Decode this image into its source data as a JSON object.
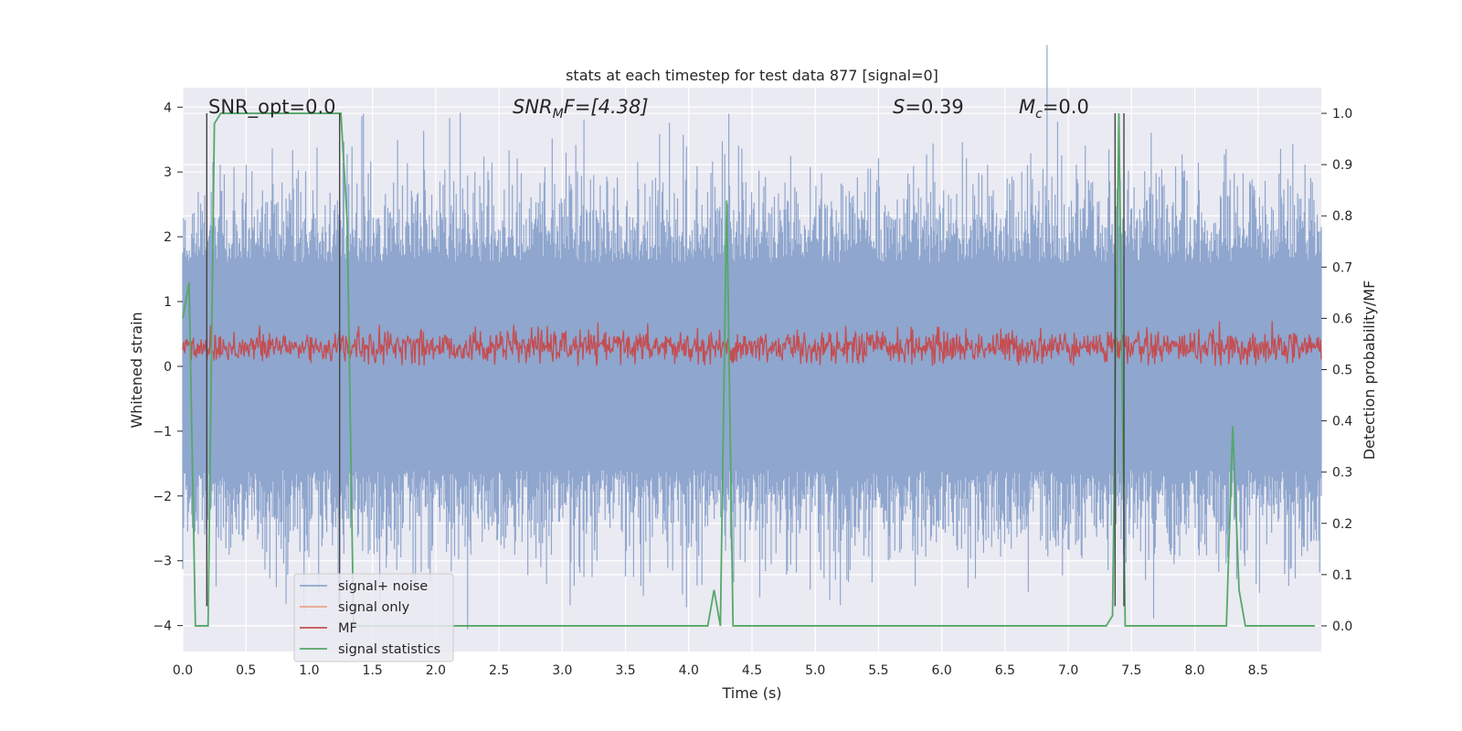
{
  "chart_data": {
    "type": "line",
    "title": "stats at each timestep for test data 877 [signal=0]",
    "xlabel": "Time (s)",
    "ylabel": "Whitened strain",
    "y2label": "Detection probability/MF",
    "xlim": [
      0.0,
      9.0
    ],
    "ylim": [
      -4.4,
      4.3
    ],
    "y2lim": [
      -0.05,
      1.05
    ],
    "xticks": [
      "0.0",
      "0.5",
      "1.0",
      "1.5",
      "2.0",
      "2.5",
      "3.0",
      "3.5",
      "4.0",
      "4.5",
      "5.0",
      "5.5",
      "6.0",
      "6.5",
      "7.0",
      "7.5",
      "8.0",
      "8.5"
    ],
    "yticks": [
      "−4",
      "−3",
      "−2",
      "−1",
      "0",
      "1",
      "2",
      "3",
      "4"
    ],
    "y2ticks": [
      "0.0",
      "0.1",
      "0.2",
      "0.3",
      "0.4",
      "0.5",
      "0.6",
      "0.7",
      "0.8",
      "0.9",
      "1.0"
    ],
    "grid": true,
    "legend_position": "lower-left",
    "annotations": {
      "snr_opt": "SNR_opt=0.0",
      "snr_mf_label": "SNR",
      "snr_mf_sub": "M",
      "snr_mf_value": "F=[4.38]",
      "s_label": "S",
      "s_value": "=0.39",
      "mc_label": "M",
      "mc_sub": "c",
      "mc_value": "=0.0"
    },
    "series": [
      {
        "name": "signal+ noise",
        "color": "#8fa6ce",
        "axis": "left",
        "approx_band": {
          "mean": 0.0,
          "spread": 1.6,
          "max_abs": 3.9
        }
      },
      {
        "name": "signal only",
        "color": "#e9a58a",
        "axis": "left",
        "values": []
      },
      {
        "name": "MF",
        "color": "#c44e52",
        "axis": "left",
        "approx_band": {
          "mean": 0.3,
          "low": 0.0,
          "high": 0.7
        }
      },
      {
        "name": "signal statistics",
        "color": "#55a868",
        "axis": "right",
        "x": [
          0.0,
          0.05,
          0.1,
          0.15,
          0.2,
          0.25,
          0.3,
          1.2,
          1.25,
          1.3,
          1.35,
          1.4,
          4.15,
          4.2,
          4.25,
          4.3,
          4.35,
          4.4,
          7.3,
          7.35,
          7.4,
          7.45,
          7.5,
          7.55,
          8.2,
          8.25,
          8.3,
          8.35,
          8.4,
          8.45,
          8.95
        ],
        "y": [
          0.6,
          0.67,
          0.0,
          0.0,
          0.0,
          0.98,
          1.0,
          1.0,
          1.0,
          0.79,
          0.0,
          0.0,
          0.0,
          0.07,
          0.0,
          0.83,
          0.0,
          0.0,
          0.0,
          0.02,
          1.0,
          0.0,
          0.0,
          0.0,
          0.0,
          0.0,
          0.39,
          0.07,
          0.0,
          0.0,
          0.0
        ]
      }
    ],
    "vertical_lines": {
      "color": "#444444",
      "x": [
        0.19,
        1.24,
        7.37,
        7.44
      ]
    }
  }
}
